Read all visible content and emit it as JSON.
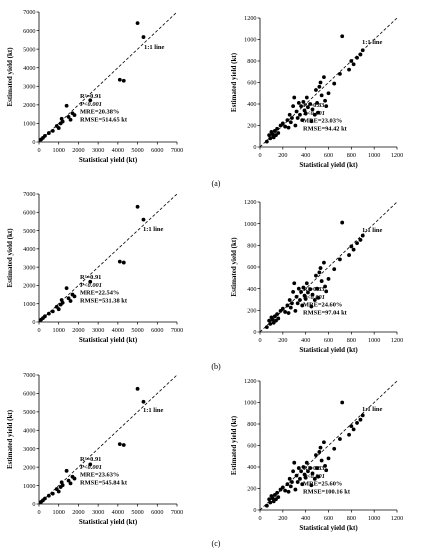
{
  "chart_data": [
    {
      "type": "scatter",
      "panel": "a",
      "side": "left",
      "xlabel": "Statistical yield (kt)",
      "ylabel": "Estimated yield (kt)",
      "xlim": [
        0,
        7000
      ],
      "ylim": [
        0,
        7000
      ],
      "xticks": [
        "0",
        "1000",
        "2000",
        "3000",
        "4000",
        "5000",
        "6000",
        "7000"
      ],
      "yticks": [
        "0",
        "1000",
        "2000",
        "3000",
        "4000",
        "5000",
        "6000",
        "7000"
      ],
      "line_label": "1:1 line",
      "stats": [
        "R²=0.91",
        "P<0.001",
        "MRE=20.38%",
        "RMSE=514.65 kt"
      ],
      "points": [
        [
          100,
          130
        ],
        [
          200,
          220
        ],
        [
          300,
          330
        ],
        [
          500,
          480
        ],
        [
          700,
          600
        ],
        [
          900,
          860
        ],
        [
          1000,
          750
        ],
        [
          1100,
          1000
        ],
        [
          1150,
          1250
        ],
        [
          1200,
          1100
        ],
        [
          1400,
          1950
        ],
        [
          1500,
          1350
        ],
        [
          1600,
          1200
        ],
        [
          1700,
          1550
        ],
        [
          1800,
          1450
        ],
        [
          2600,
          2250
        ],
        [
          4100,
          3350
        ],
        [
          4300,
          3300
        ],
        [
          5000,
          6400
        ],
        [
          5300,
          5650
        ]
      ]
    },
    {
      "type": "scatter",
      "panel": "a",
      "side": "right",
      "xlabel": "Statistical yield (kt)",
      "ylabel": "Estimated yield (kt)",
      "xlim": [
        0,
        1200
      ],
      "ylim": [
        0,
        1200
      ],
      "xticks": [
        "0",
        "200",
        "400",
        "600",
        "800",
        "1000",
        "1200"
      ],
      "yticks": [
        "0",
        "200",
        "400",
        "600",
        "800",
        "1000",
        "1200"
      ],
      "line_label": "1:1 line",
      "stats": [
        "R²=0.83",
        "P<0.001",
        "MRE=23.03%",
        "RMSE=94.42 kt"
      ],
      "points": [
        [
          60,
          50
        ],
        [
          80,
          110
        ],
        [
          90,
          80
        ],
        [
          100,
          140
        ],
        [
          110,
          120
        ],
        [
          120,
          90
        ],
        [
          130,
          150
        ],
        [
          140,
          110
        ],
        [
          150,
          170
        ],
        [
          160,
          130
        ],
        [
          180,
          200
        ],
        [
          200,
          220
        ],
        [
          220,
          190
        ],
        [
          240,
          250
        ],
        [
          250,
          180
        ],
        [
          260,
          300
        ],
        [
          270,
          230
        ],
        [
          280,
          270
        ],
        [
          290,
          380
        ],
        [
          300,
          460
        ],
        [
          310,
          200
        ],
        [
          320,
          330
        ],
        [
          330,
          270
        ],
        [
          340,
          410
        ],
        [
          350,
          300
        ],
        [
          360,
          380
        ],
        [
          370,
          250
        ],
        [
          380,
          420
        ],
        [
          390,
          340
        ],
        [
          400,
          310
        ],
        [
          410,
          460
        ],
        [
          420,
          370
        ],
        [
          440,
          400
        ],
        [
          450,
          240
        ],
        [
          460,
          350
        ],
        [
          480,
          300
        ],
        [
          490,
          530
        ],
        [
          500,
          410
        ],
        [
          510,
          320
        ],
        [
          520,
          560
        ],
        [
          530,
          600
        ],
        [
          540,
          480
        ],
        [
          560,
          650
        ],
        [
          570,
          430
        ],
        [
          580,
          380
        ],
        [
          600,
          500
        ],
        [
          650,
          590
        ],
        [
          700,
          680
        ],
        [
          720,
          1030
        ],
        [
          780,
          720
        ],
        [
          800,
          800
        ],
        [
          820,
          770
        ],
        [
          850,
          830
        ],
        [
          880,
          860
        ],
        [
          900,
          900
        ]
      ]
    },
    {
      "type": "scatter",
      "panel": "b",
      "side": "left",
      "xlabel": "Statistical yield (kt)",
      "ylabel": "Estimated yield (kt)",
      "xlim": [
        0,
        7000
      ],
      "ylim": [
        0,
        7000
      ],
      "xticks": [
        "0",
        "1000",
        "2000",
        "3000",
        "4000",
        "5000",
        "6000",
        "7000"
      ],
      "yticks": [
        "0",
        "1000",
        "2000",
        "3000",
        "4000",
        "5000",
        "6000",
        "7000"
      ],
      "line_label": "1:1 line",
      "stats": [
        "R²=0.91",
        "P<0.001",
        "MRE=22.54%",
        "RMSE=531.38 kt"
      ],
      "points": [
        [
          100,
          120
        ],
        [
          200,
          210
        ],
        [
          300,
          310
        ],
        [
          500,
          460
        ],
        [
          700,
          580
        ],
        [
          900,
          830
        ],
        [
          1000,
          700
        ],
        [
          1100,
          950
        ],
        [
          1150,
          1200
        ],
        [
          1200,
          1050
        ],
        [
          1400,
          1850
        ],
        [
          1500,
          1300
        ],
        [
          1600,
          1150
        ],
        [
          1700,
          1500
        ],
        [
          1800,
          1400
        ],
        [
          2600,
          2200
        ],
        [
          4100,
          3300
        ],
        [
          4300,
          3250
        ],
        [
          5000,
          6300
        ],
        [
          5300,
          5600
        ]
      ]
    },
    {
      "type": "scatter",
      "panel": "b",
      "side": "right",
      "xlabel": "Statistical yield (kt)",
      "ylabel": "Estimated yield (kt)",
      "xlim": [
        0,
        1200
      ],
      "ylim": [
        0,
        1200
      ],
      "xticks": [
        "0",
        "200",
        "400",
        "600",
        "800",
        "1000",
        "1200"
      ],
      "yticks": [
        "0",
        "200",
        "400",
        "600",
        "800",
        "1000",
        "1200"
      ],
      "line_label": "1:1 line",
      "stats": [
        "R²=0.83",
        "P<0.001",
        "MRE=24.60%",
        "RMSE=97.04 kt"
      ],
      "points": [
        [
          60,
          45
        ],
        [
          80,
          105
        ],
        [
          90,
          75
        ],
        [
          100,
          135
        ],
        [
          110,
          115
        ],
        [
          120,
          85
        ],
        [
          130,
          145
        ],
        [
          140,
          105
        ],
        [
          150,
          165
        ],
        [
          160,
          125
        ],
        [
          180,
          195
        ],
        [
          200,
          215
        ],
        [
          220,
          185
        ],
        [
          240,
          245
        ],
        [
          250,
          175
        ],
        [
          260,
          295
        ],
        [
          270,
          225
        ],
        [
          280,
          265
        ],
        [
          290,
          370
        ],
        [
          300,
          450
        ],
        [
          310,
          195
        ],
        [
          320,
          325
        ],
        [
          330,
          265
        ],
        [
          340,
          400
        ],
        [
          350,
          295
        ],
        [
          360,
          370
        ],
        [
          370,
          245
        ],
        [
          380,
          410
        ],
        [
          390,
          335
        ],
        [
          400,
          305
        ],
        [
          410,
          450
        ],
        [
          420,
          365
        ],
        [
          440,
          395
        ],
        [
          450,
          235
        ],
        [
          460,
          345
        ],
        [
          480,
          295
        ],
        [
          490,
          520
        ],
        [
          500,
          400
        ],
        [
          510,
          315
        ],
        [
          520,
          550
        ],
        [
          530,
          590
        ],
        [
          540,
          470
        ],
        [
          560,
          640
        ],
        [
          570,
          420
        ],
        [
          580,
          375
        ],
        [
          600,
          490
        ],
        [
          650,
          580
        ],
        [
          700,
          670
        ],
        [
          720,
          1010
        ],
        [
          780,
          710
        ],
        [
          800,
          790
        ],
        [
          820,
          760
        ],
        [
          850,
          820
        ],
        [
          880,
          850
        ],
        [
          900,
          890
        ]
      ]
    },
    {
      "type": "scatter",
      "panel": "c",
      "side": "left",
      "xlabel": "Statistical yield (kt)",
      "ylabel": "Estimated yield (kt)",
      "xlim": [
        0,
        7000
      ],
      "ylim": [
        0,
        7000
      ],
      "xticks": [
        "0",
        "1000",
        "2000",
        "3000",
        "4000",
        "5000",
        "6000",
        "7000"
      ],
      "yticks": [
        "0",
        "1000",
        "2000",
        "3000",
        "4000",
        "5000",
        "6000",
        "7000"
      ],
      "line_label": "1:1 line",
      "stats": [
        "R²=0.91",
        "P<0.001",
        "MRE=23.63%",
        "RMSE=545.84 kt"
      ],
      "points": [
        [
          100,
          110
        ],
        [
          200,
          200
        ],
        [
          300,
          300
        ],
        [
          500,
          450
        ],
        [
          700,
          560
        ],
        [
          900,
          810
        ],
        [
          1000,
          680
        ],
        [
          1100,
          920
        ],
        [
          1150,
          1180
        ],
        [
          1200,
          1020
        ],
        [
          1400,
          1800
        ],
        [
          1500,
          1270
        ],
        [
          1600,
          1120
        ],
        [
          1700,
          1480
        ],
        [
          1800,
          1380
        ],
        [
          2600,
          2150
        ],
        [
          4100,
          3250
        ],
        [
          4300,
          3200
        ],
        [
          5000,
          6250
        ],
        [
          5300,
          5550
        ]
      ]
    },
    {
      "type": "scatter",
      "panel": "c",
      "side": "right",
      "xlabel": "Statistical yield (kt)",
      "ylabel": "Estimated yield (kt)",
      "xlim": [
        0,
        1200
      ],
      "ylim": [
        0,
        1200
      ],
      "xticks": [
        "0",
        "200",
        "400",
        "600",
        "800",
        "1000",
        "1200"
      ],
      "yticks": [
        "0",
        "200",
        "400",
        "600",
        "800",
        "1000",
        "1200"
      ],
      "line_label": "1:1 line",
      "stats": [
        "R²=0.83",
        "P<0.001",
        "MRE=25.60%",
        "RMSE=100.16 kt"
      ],
      "points": [
        [
          60,
          40
        ],
        [
          80,
          100
        ],
        [
          90,
          70
        ],
        [
          100,
          130
        ],
        [
          110,
          110
        ],
        [
          120,
          80
        ],
        [
          130,
          140
        ],
        [
          140,
          100
        ],
        [
          150,
          160
        ],
        [
          160,
          120
        ],
        [
          180,
          190
        ],
        [
          200,
          210
        ],
        [
          220,
          180
        ],
        [
          240,
          240
        ],
        [
          250,
          170
        ],
        [
          260,
          290
        ],
        [
          270,
          220
        ],
        [
          280,
          260
        ],
        [
          290,
          360
        ],
        [
          300,
          440
        ],
        [
          310,
          190
        ],
        [
          320,
          320
        ],
        [
          330,
          260
        ],
        [
          340,
          390
        ],
        [
          350,
          290
        ],
        [
          360,
          360
        ],
        [
          370,
          240
        ],
        [
          380,
          400
        ],
        [
          390,
          330
        ],
        [
          400,
          300
        ],
        [
          410,
          440
        ],
        [
          420,
          360
        ],
        [
          440,
          390
        ],
        [
          450,
          230
        ],
        [
          460,
          340
        ],
        [
          480,
          290
        ],
        [
          490,
          510
        ],
        [
          500,
          390
        ],
        [
          510,
          310
        ],
        [
          520,
          540
        ],
        [
          530,
          580
        ],
        [
          540,
          460
        ],
        [
          560,
          630
        ],
        [
          570,
          410
        ],
        [
          580,
          370
        ],
        [
          600,
          480
        ],
        [
          650,
          570
        ],
        [
          700,
          660
        ],
        [
          720,
          1000
        ],
        [
          780,
          700
        ],
        [
          800,
          780
        ],
        [
          820,
          750
        ],
        [
          850,
          810
        ],
        [
          880,
          840
        ],
        [
          900,
          880
        ]
      ]
    }
  ],
  "captions": [
    "(a)",
    "(b)",
    "(c)"
  ]
}
